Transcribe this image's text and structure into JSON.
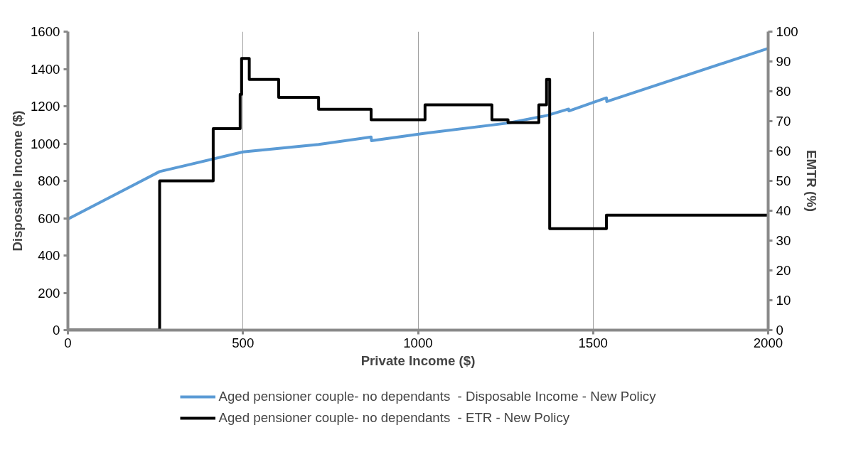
{
  "chart_data": {
    "type": "line",
    "xlabel": "Private Income ($)",
    "ylabel": "Disposable Income ($)",
    "y2label": "EMTR (%)",
    "xlim": [
      0,
      2000
    ],
    "xticks": [
      0,
      500,
      1000,
      1500,
      2000
    ],
    "ylim": [
      0,
      1600
    ],
    "yticks": [
      0,
      200,
      400,
      600,
      800,
      1000,
      1200,
      1400,
      1600
    ],
    "y2lim": [
      0,
      100
    ],
    "y2ticks": [
      0,
      10,
      20,
      30,
      40,
      50,
      60,
      70,
      80,
      90,
      100
    ],
    "grid": "x",
    "legend": "bottom",
    "series": [
      {
        "name": "Aged pensioner couple- no dependants  - Disposable Income - New Policy",
        "color": "#5b9bd5",
        "x": [
          0,
          262,
          500,
          716,
          866,
          867,
          1020,
          1257,
          1367,
          1430,
          1431,
          1538,
          1539,
          2000
        ],
        "values": [
          595,
          850,
          955,
          995,
          1035,
          1015,
          1055,
          1110,
          1150,
          1185,
          1175,
          1245,
          1225,
          1510
        ]
      },
      {
        "name": "Aged pensioner couple- no dependants  - ETR - New Policy",
        "color": "#000000",
        "type": "step",
        "axis": "y2",
        "x": [
          0,
          262,
          415,
          492,
          496,
          518,
          602,
          716,
          866,
          1020,
          1211,
          1257,
          1345,
          1367,
          1376,
          1538,
          2000
        ],
        "values": [
          0,
          50,
          67.5,
          79,
          91,
          84,
          78,
          74,
          70.5,
          75.5,
          70.5,
          69.5,
          75.5,
          84,
          34,
          38.5,
          38.5
        ]
      }
    ]
  }
}
